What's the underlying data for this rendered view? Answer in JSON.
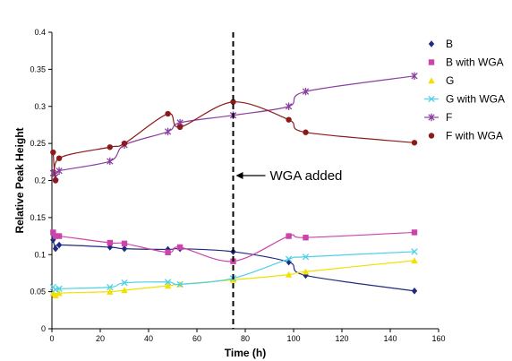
{
  "chart_data": {
    "type": "line",
    "xlabel": "Time (h)",
    "ylabel": "Relative Peak Height",
    "xlim": [
      0,
      160
    ],
    "ylim": [
      0,
      0.4
    ],
    "x_ticks": [
      "0",
      "20",
      "40",
      "60",
      "80",
      "100",
      "120",
      "140",
      "160"
    ],
    "y_ticks": [
      "0",
      "0.05",
      "0.1",
      "0.15",
      "0.2",
      "0.25",
      "0.3",
      "0.35",
      "0.4"
    ],
    "grid": false,
    "legend_position": "right",
    "annotation": {
      "text": "WGA added",
      "x": 75
    },
    "series": [
      {
        "name": "B",
        "color": "#1f2a80",
        "marker": "diamond",
        "x": [
          0.5,
          1.5,
          3,
          24,
          30,
          48,
          53,
          75,
          98,
          105,
          150
        ],
        "y": [
          0.12,
          0.108,
          0.113,
          0.11,
          0.108,
          0.107,
          0.108,
          0.104,
          0.09,
          0.072,
          0.051
        ]
      },
      {
        "name": "B with WGA",
        "color": "#cc44aa",
        "marker": "square",
        "x": [
          0.5,
          1.5,
          3,
          24,
          30,
          48,
          53,
          75,
          98,
          105,
          150
        ],
        "y": [
          0.13,
          0.125,
          0.125,
          0.116,
          0.115,
          0.103,
          0.11,
          0.091,
          0.125,
          0.123,
          0.13
        ]
      },
      {
        "name": "G",
        "color": "#f2e000",
        "marker": "triangle",
        "x": [
          0.5,
          1.5,
          3,
          24,
          30,
          48,
          53,
          75,
          98,
          105,
          150
        ],
        "y": [
          0.048,
          0.045,
          0.048,
          0.05,
          0.052,
          0.058,
          0.06,
          0.066,
          0.073,
          0.077,
          0.092
        ]
      },
      {
        "name": "G with WGA",
        "color": "#4dd0e8",
        "marker": "x",
        "x": [
          0.5,
          1.5,
          3,
          24,
          30,
          48,
          53,
          75,
          98,
          105,
          150
        ],
        "y": [
          0.056,
          0.053,
          0.054,
          0.056,
          0.062,
          0.063,
          0.06,
          0.068,
          0.094,
          0.097,
          0.104
        ]
      },
      {
        "name": "F",
        "color": "#8a3fa0",
        "marker": "star",
        "x": [
          0.5,
          1.5,
          3,
          24,
          30,
          48,
          53,
          75,
          98,
          105,
          150
        ],
        "y": [
          0.21,
          0.205,
          0.213,
          0.226,
          0.248,
          0.266,
          0.278,
          0.288,
          0.3,
          0.32,
          0.341
        ]
      },
      {
        "name": "F with WGA",
        "color": "#8b1a1a",
        "marker": "circle",
        "x": [
          0.5,
          1.5,
          3,
          24,
          30,
          48,
          53,
          75,
          98,
          105,
          150
        ],
        "y": [
          0.238,
          0.2,
          0.23,
          0.245,
          0.25,
          0.29,
          0.272,
          0.306,
          0.282,
          0.265,
          0.251
        ]
      }
    ]
  }
}
